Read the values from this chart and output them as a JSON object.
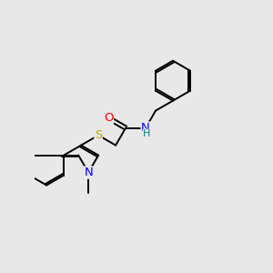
{
  "bg_color": "#e8e8e8",
  "bond_color": "#000000",
  "bond_width": 1.4,
  "atom_colors": {
    "O": "#ff0000",
    "N": "#0000ff",
    "S": "#ccaa00",
    "H": "#008080",
    "C": "#000000"
  },
  "font_size": 9.5
}
